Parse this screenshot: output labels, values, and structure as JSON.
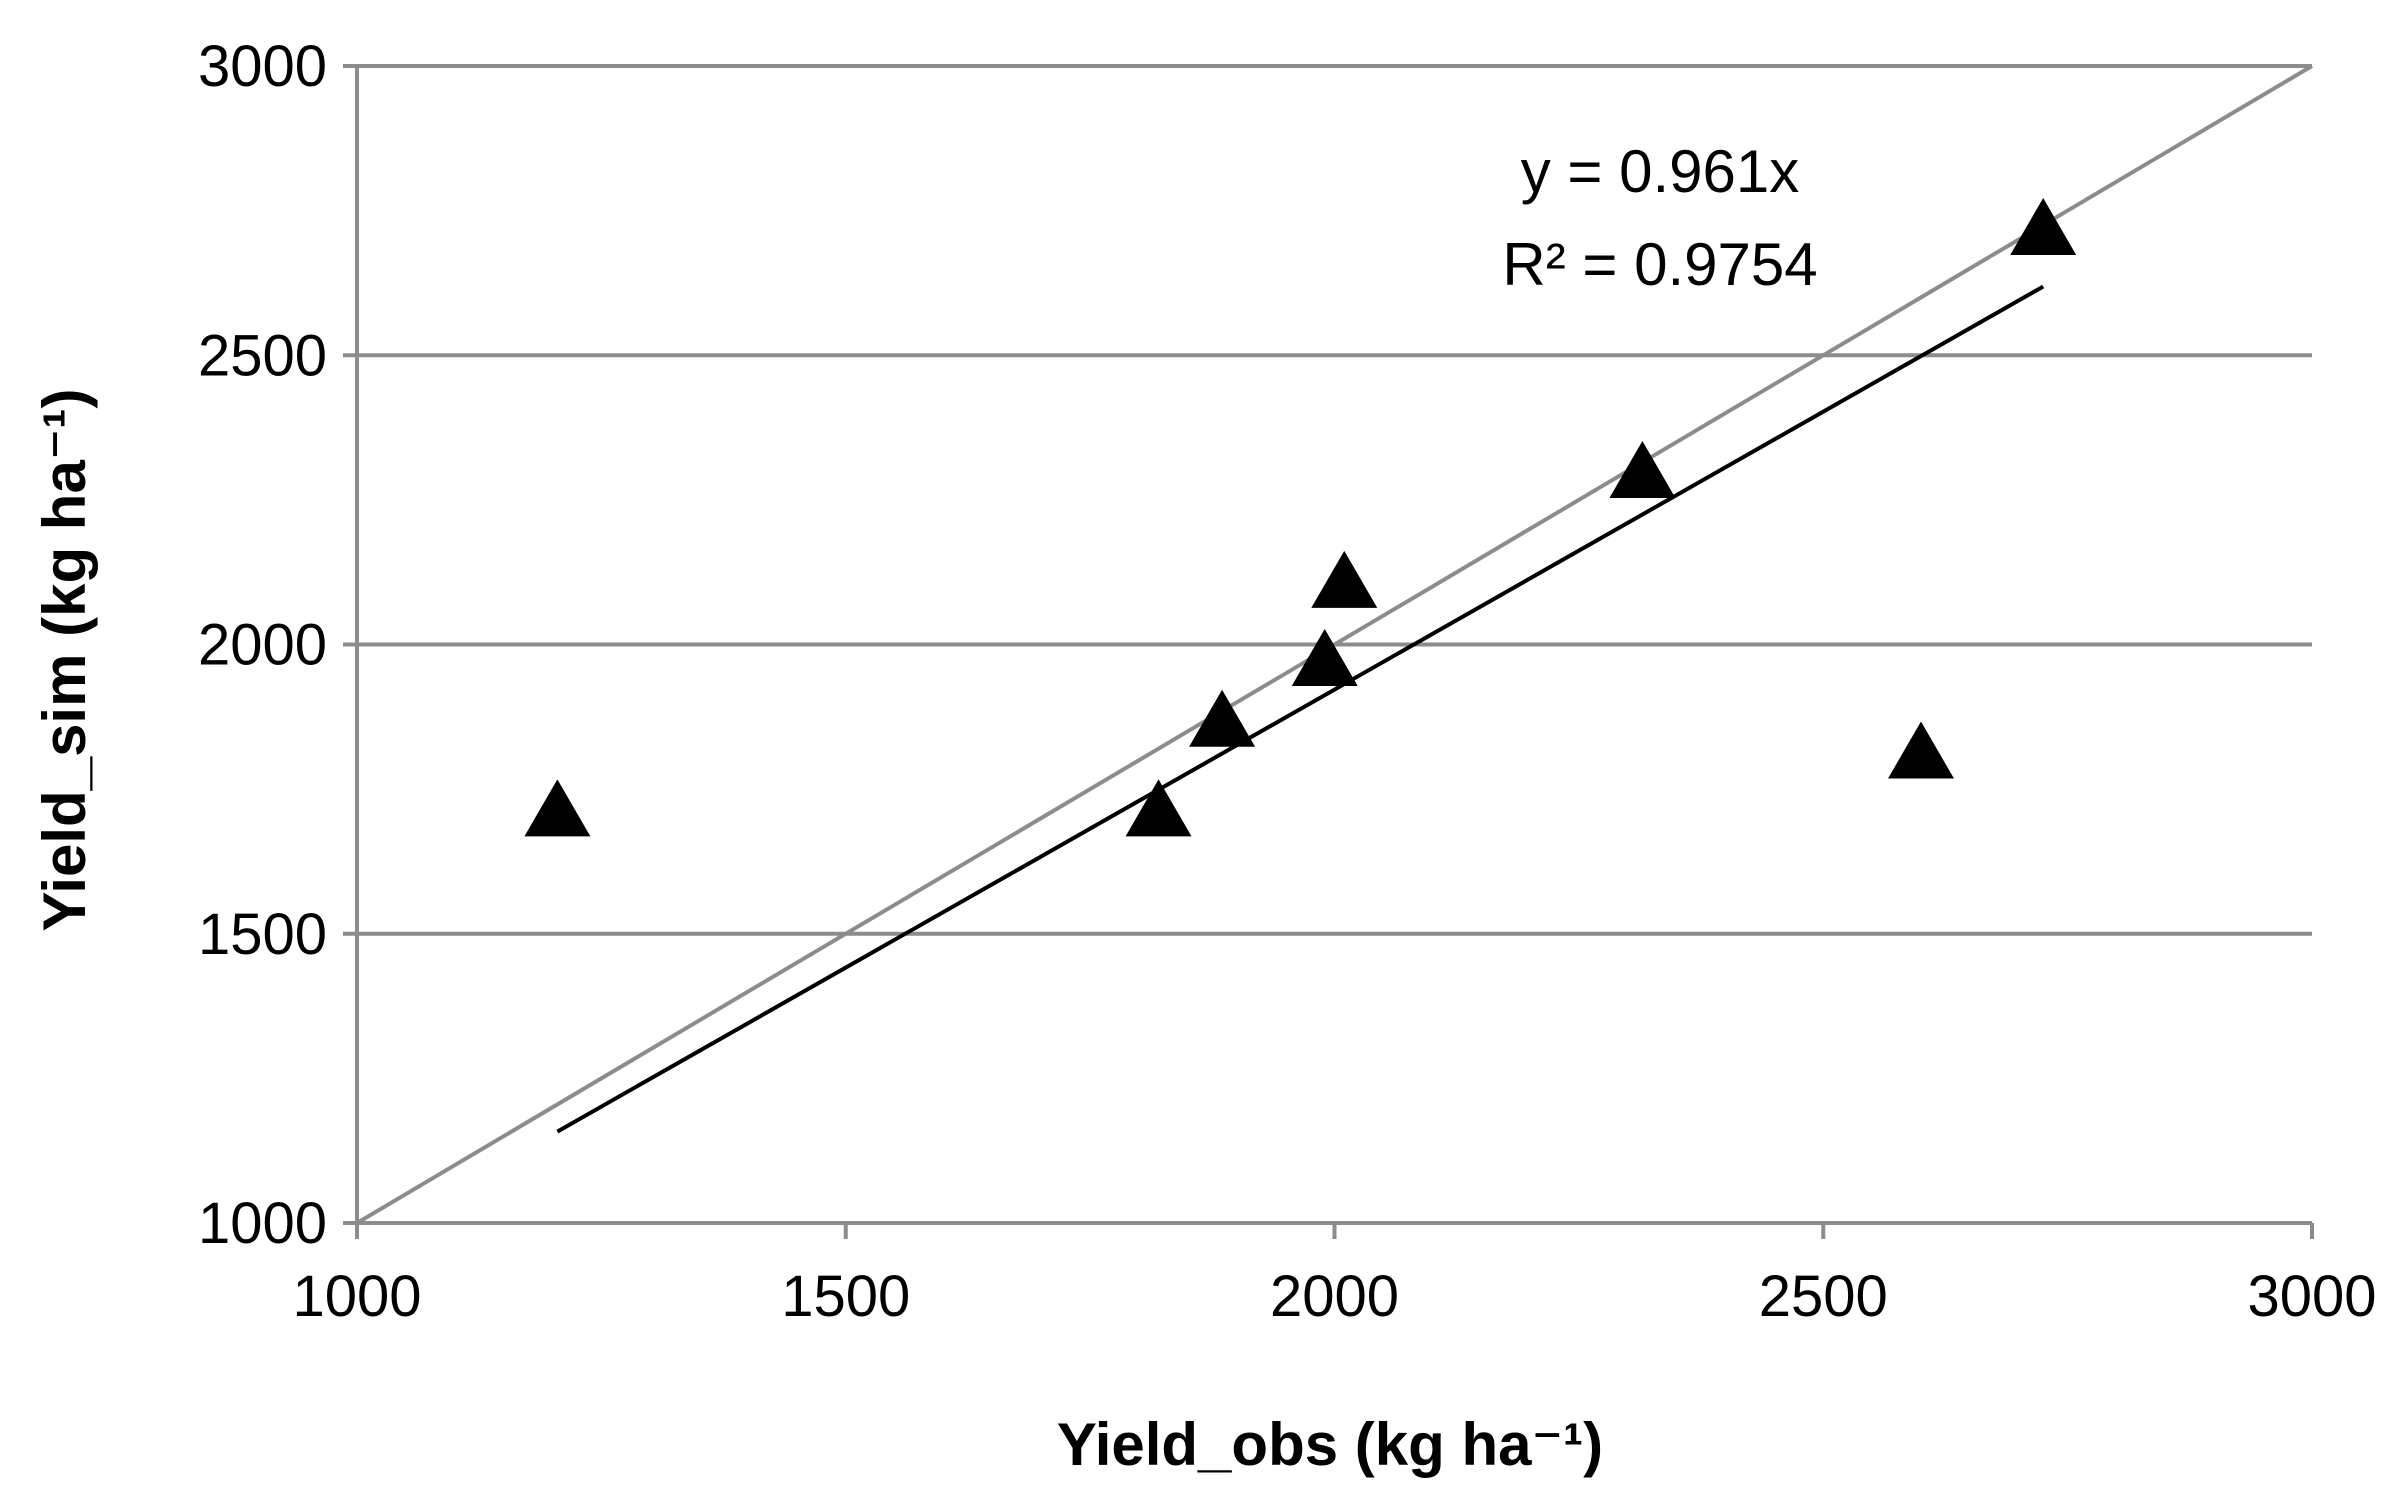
{
  "chart_data": {
    "type": "scatter",
    "xlabel": "Yield_obs (kg ha⁻¹)",
    "ylabel": "Yield_sim (kg ha⁻¹)",
    "xlim": [
      1000,
      3000
    ],
    "ylim": [
      1000,
      3000
    ],
    "x_ticks": [
      "1000",
      "1500",
      "2000",
      "2500",
      "3000"
    ],
    "y_ticks": [
      "1000",
      "1500",
      "2000",
      "2500",
      "3000"
    ],
    "grid": "horizontal",
    "marker": "triangle",
    "points": [
      {
        "x": 1205,
        "y": 1715
      },
      {
        "x": 1820,
        "y": 1715
      },
      {
        "x": 1885,
        "y": 1870
      },
      {
        "x": 1990,
        "y": 1975
      },
      {
        "x": 2010,
        "y": 2110
      },
      {
        "x": 2315,
        "y": 2300
      },
      {
        "x": 2600,
        "y": 1815
      },
      {
        "x": 2725,
        "y": 2720
      }
    ],
    "one_to_one_line": {
      "x": [
        1000,
        3000
      ],
      "y": [
        1000,
        3000
      ],
      "color": "#8c8c8c"
    },
    "trendline": {
      "slope": 0.961,
      "x_range": [
        1205,
        2725
      ],
      "color": "#000000"
    },
    "annotations": [
      "y = 0.961x",
      "R² = 0.9754"
    ]
  },
  "colors": {
    "grid": "#8c8c8c",
    "points": "#000000",
    "axis": "#8c8c8c"
  }
}
